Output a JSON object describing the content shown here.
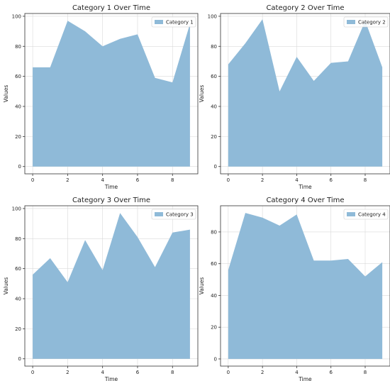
{
  "chart_data": [
    {
      "type": "area",
      "title": "Category 1 Over Time",
      "xlabel": "Time",
      "ylabel": "Values",
      "x": [
        0,
        1,
        2,
        3,
        4,
        5,
        6,
        7,
        8,
        9
      ],
      "xticks": [
        0,
        2,
        4,
        6,
        8
      ],
      "yticks": [
        0,
        20,
        40,
        60,
        80,
        100
      ],
      "xlim": [
        -0.45,
        9.45
      ],
      "ylim": [
        -4.85,
        101.85
      ],
      "grid": true,
      "legend": "top-right",
      "series": [
        {
          "name": "Category 1",
          "color": "#8fbad8",
          "values": [
            66,
            66,
            97,
            90,
            80,
            85,
            88,
            59,
            56,
            95
          ]
        }
      ]
    },
    {
      "type": "area",
      "title": "Category 2 Over Time",
      "xlabel": "Time",
      "ylabel": "Values",
      "x": [
        0,
        1,
        2,
        3,
        4,
        5,
        6,
        7,
        8,
        9
      ],
      "xticks": [
        0,
        2,
        4,
        6,
        8
      ],
      "yticks": [
        0,
        20,
        40,
        60,
        80,
        100
      ],
      "xlim": [
        -0.45,
        9.45
      ],
      "ylim": [
        -4.85,
        101.85
      ],
      "grid": true,
      "legend": "top-right",
      "series": [
        {
          "name": "Category 2",
          "color": "#8fbad8",
          "values": [
            68,
            82,
            98,
            50,
            73,
            57,
            69,
            70,
            97,
            66
          ]
        }
      ]
    },
    {
      "type": "area",
      "title": "Category 3 Over Time",
      "xlabel": "Time",
      "ylabel": "Values",
      "x": [
        0,
        1,
        2,
        3,
        4,
        5,
        6,
        7,
        8,
        9
      ],
      "xticks": [
        0,
        2,
        4,
        6,
        8
      ],
      "yticks": [
        0,
        20,
        40,
        60,
        80,
        100
      ],
      "xlim": [
        -0.45,
        9.45
      ],
      "ylim": [
        -4.85,
        101.85
      ],
      "grid": true,
      "legend": "top-right",
      "series": [
        {
          "name": "Category 3",
          "color": "#8fbad8",
          "values": [
            56,
            67,
            51,
            79,
            59,
            97,
            81,
            61,
            84,
            86
          ]
        }
      ]
    },
    {
      "type": "area",
      "title": "Category 4 Over Time",
      "xlabel": "Time",
      "ylabel": "Values",
      "x": [
        0,
        1,
        2,
        3,
        4,
        5,
        6,
        7,
        8,
        9
      ],
      "xticks": [
        0,
        2,
        4,
        6,
        8
      ],
      "yticks": [
        0,
        20,
        40,
        60,
        80
      ],
      "xlim": [
        -0.45,
        9.45
      ],
      "ylim": [
        -4.5,
        96.5
      ],
      "grid": true,
      "legend": "top-right",
      "series": [
        {
          "name": "Category 4",
          "color": "#8fbad8",
          "values": [
            56,
            92,
            89,
            84,
            91,
            62,
            62,
            63,
            52,
            61
          ]
        }
      ]
    }
  ]
}
